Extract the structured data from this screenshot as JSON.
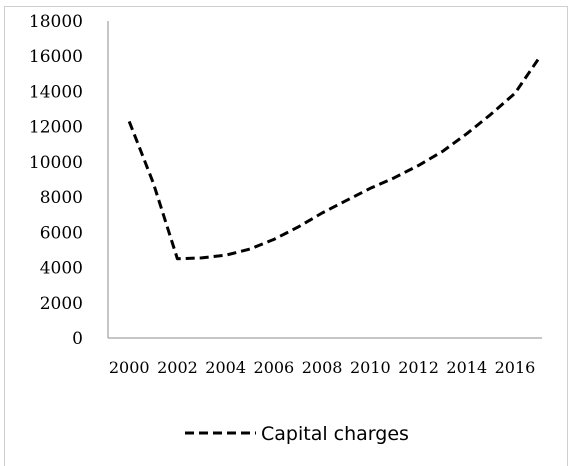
{
  "chart_data": {
    "type": "line",
    "title": "",
    "xlabel": "",
    "ylabel": "",
    "x": [
      2000,
      2001,
      2002,
      2003,
      2004,
      2005,
      2006,
      2007,
      2008,
      2009,
      2010,
      2011,
      2012,
      2013,
      2014,
      2015,
      2016,
      2017
    ],
    "x_tick_labels": [
      "2000",
      "2002",
      "2004",
      "2006",
      "2008",
      "2010",
      "2012",
      "2014",
      "2016"
    ],
    "ylim": [
      0,
      18000
    ],
    "y_tick_labels": [
      "0",
      "2000",
      "4000",
      "6000",
      "8000",
      "10000",
      "12000",
      "14000",
      "16000",
      "18000"
    ],
    "grid": false,
    "legend_position": "bottom",
    "series": [
      {
        "name": "Capital charges",
        "line_style": "dashed",
        "color": "#000000",
        "values": [
          12300,
          8800,
          4500,
          4550,
          4700,
          5050,
          5600,
          6300,
          7100,
          7800,
          8500,
          9100,
          9800,
          10600,
          11600,
          12700,
          13900,
          15900
        ]
      }
    ]
  }
}
